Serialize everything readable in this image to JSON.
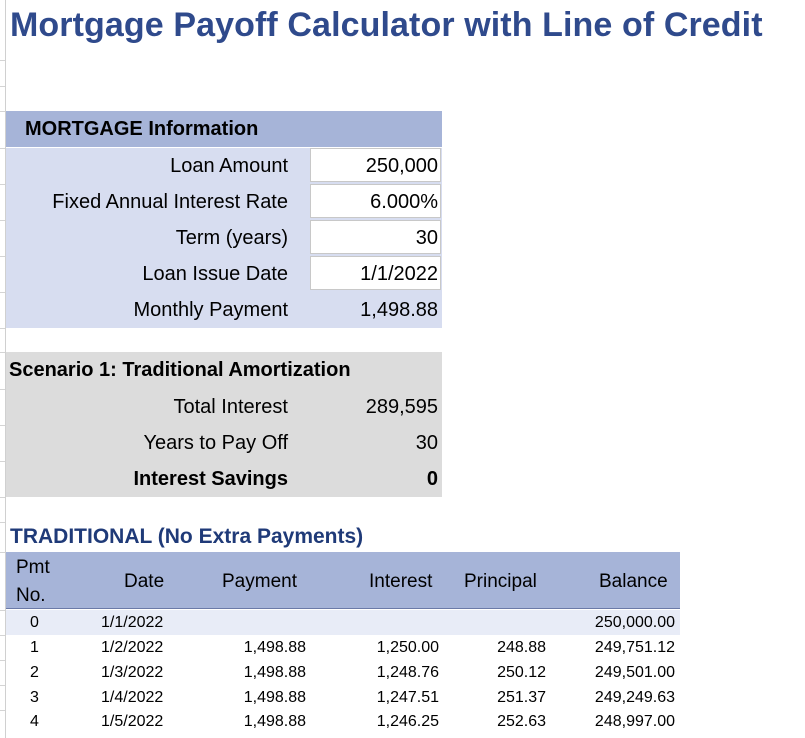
{
  "title": "Mortgage Payoff Calculator with Line of Credit",
  "mortgage": {
    "header": "MORTGAGE Information",
    "rows": [
      {
        "label": "Loan Amount",
        "value": "250,000"
      },
      {
        "label": "Fixed Annual Interest Rate",
        "value": "6.000%"
      },
      {
        "label": "Term (years)",
        "value": "30"
      },
      {
        "label": "Loan Issue Date",
        "value": "1/1/2022"
      },
      {
        "label": "Monthly Payment",
        "value": "1,498.88"
      }
    ]
  },
  "scenario": {
    "header": "Scenario 1: Traditional Amortization",
    "rows": [
      {
        "label": "Total Interest",
        "value": "289,595"
      },
      {
        "label": "Years to Pay Off",
        "value": "30"
      },
      {
        "label": "Interest Savings",
        "value": "0"
      }
    ]
  },
  "table": {
    "title": "TRADITIONAL (No Extra Payments)",
    "headers": {
      "pmt1": "Pmt",
      "pmt2": "No.",
      "date": "Date",
      "payment": "Payment",
      "interest": "Interest",
      "principal": "Principal",
      "balance": "Balance"
    },
    "rows": [
      {
        "no": "0",
        "date": "1/1/2022",
        "payment": "",
        "interest": "",
        "principal": "",
        "balance": "250,000.00"
      },
      {
        "no": "1",
        "date": "1/2/2022",
        "payment": "1,498.88",
        "interest": "1,250.00",
        "principal": "248.88",
        "balance": "249,751.12"
      },
      {
        "no": "2",
        "date": "1/3/2022",
        "payment": "1,498.88",
        "interest": "1,248.76",
        "principal": "250.12",
        "balance": "249,501.00"
      },
      {
        "no": "3",
        "date": "1/4/2022",
        "payment": "1,498.88",
        "interest": "1,247.51",
        "principal": "251.37",
        "balance": "249,249.63"
      },
      {
        "no": "4",
        "date": "1/5/2022",
        "payment": "1,498.88",
        "interest": "1,246.25",
        "principal": "252.63",
        "balance": "248,997.00"
      }
    ]
  }
}
